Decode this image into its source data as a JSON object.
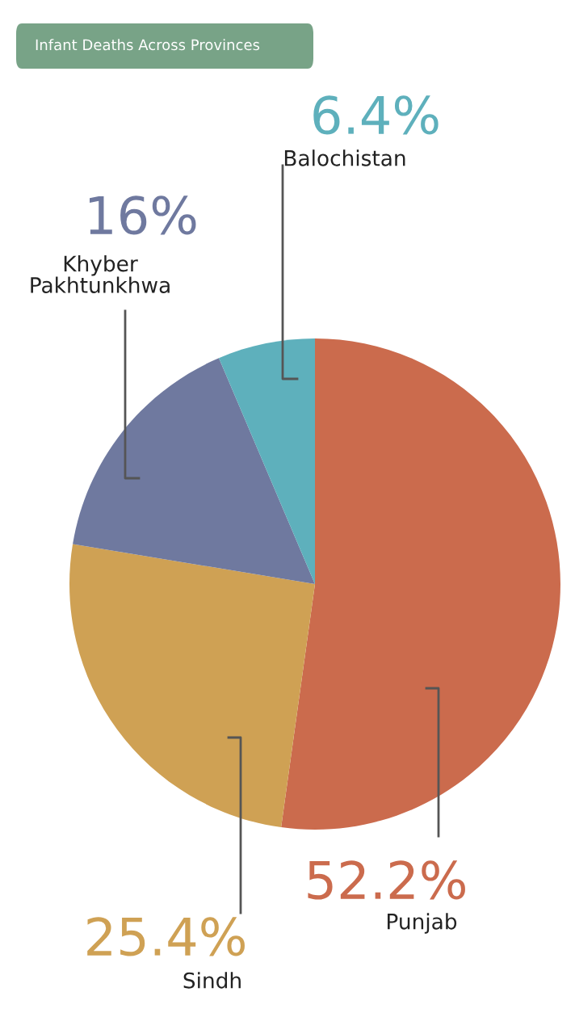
{
  "chart_data": {
    "type": "pie",
    "title": "Infant Deaths Across Provinces",
    "categories": [
      "Punjab",
      "Sindh",
      "Khyber Pakhtunkhwa",
      "Balochistan"
    ],
    "values": [
      52.2,
      25.4,
      16,
      6.4
    ],
    "colors": [
      "#cb6b4d",
      "#cfa154",
      "#6f799f",
      "#5eb0bc"
    ],
    "value_labels": [
      "52.2%",
      "25.4%",
      "16%",
      "6.4%"
    ],
    "legend": false
  }
}
